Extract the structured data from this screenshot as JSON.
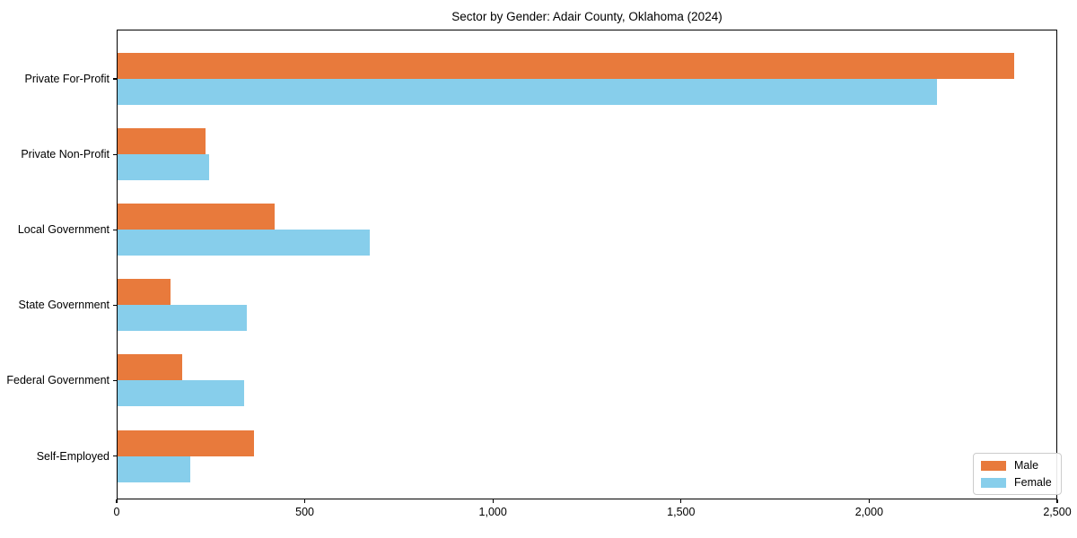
{
  "chart_data": {
    "type": "bar",
    "orientation": "horizontal",
    "title": "Sector by Gender: Adair County, Oklahoma (2024)",
    "categories": [
      "Private For-Profit",
      "Private Non-Profit",
      "Local Government",
      "State Government",
      "Federal Government",
      "Self-Employed"
    ],
    "series": [
      {
        "name": "Male",
        "color": "#e87a3c",
        "values": [
          2385,
          237,
          420,
          143,
          174,
          365
        ]
      },
      {
        "name": "Female",
        "color": "#87ceeb",
        "values": [
          2180,
          246,
          673,
          346,
          339,
          196
        ]
      }
    ],
    "xlabel": "",
    "ylabel": "",
    "xlim": [
      0,
      2500
    ],
    "xticks": [
      0,
      500,
      1000,
      1500,
      2000,
      2500
    ],
    "xtick_labels": [
      "0",
      "500",
      "1,000",
      "1,500",
      "2,000",
      "2,500"
    ],
    "grid": false,
    "legend_position": "lower right"
  },
  "colors": {
    "spine": "#000000",
    "text": "#000000",
    "legend_border": "#cccccc",
    "background": "#ffffff"
  }
}
